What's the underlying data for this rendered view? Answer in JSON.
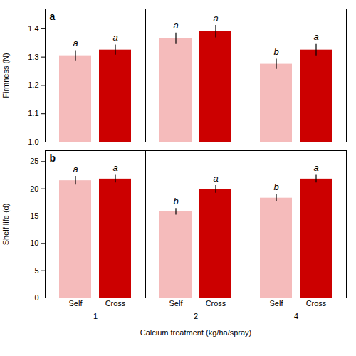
{
  "chart_data": [
    {
      "type": "bar",
      "title": "a",
      "categories": [
        "1",
        "2",
        "4"
      ],
      "series": [
        {
          "name": "Self",
          "color": "#F5BBBB",
          "values": [
            1.305,
            1.365,
            1.275
          ],
          "errors": [
            0.018,
            0.02,
            0.018
          ],
          "letters": [
            "a",
            "a",
            "b"
          ]
        },
        {
          "name": "Cross",
          "color": "#CC0000",
          "values": [
            1.325,
            1.39,
            1.325
          ],
          "errors": [
            0.018,
            0.022,
            0.02
          ],
          "letters": [
            "a",
            "a",
            "a"
          ]
        }
      ],
      "ylabel": "Firmness (N)",
      "ylim": [
        1.0,
        1.47
      ],
      "yticks": [
        {
          "value": 1.0,
          "label": "1.0"
        },
        1.1,
        1.2,
        1.3,
        1.4
      ],
      "grid": false,
      "tick_labels": "y"
    },
    {
      "type": "bar",
      "title": "b",
      "categories": [
        "1",
        "2",
        "4"
      ],
      "series": [
        {
          "name": "Self",
          "color": "#F5BBBB",
          "values": [
            21.5,
            15.8,
            18.3
          ],
          "errors": [
            0.8,
            0.6,
            0.7
          ],
          "letters": [
            "a",
            "b",
            "b"
          ]
        },
        {
          "name": "Cross",
          "color": "#CC0000",
          "values": [
            21.8,
            19.9,
            21.8
          ],
          "errors": [
            0.7,
            0.7,
            0.7
          ],
          "letters": [
            "a",
            "a",
            "a"
          ]
        }
      ],
      "xlabel": "Calcium treatment (kg/ha/spray)",
      "ylabel": "Shelf life (d)",
      "ylim": [
        0,
        27
      ],
      "yticks": [
        0,
        5,
        10,
        15,
        20,
        25
      ],
      "grid": false
    }
  ]
}
